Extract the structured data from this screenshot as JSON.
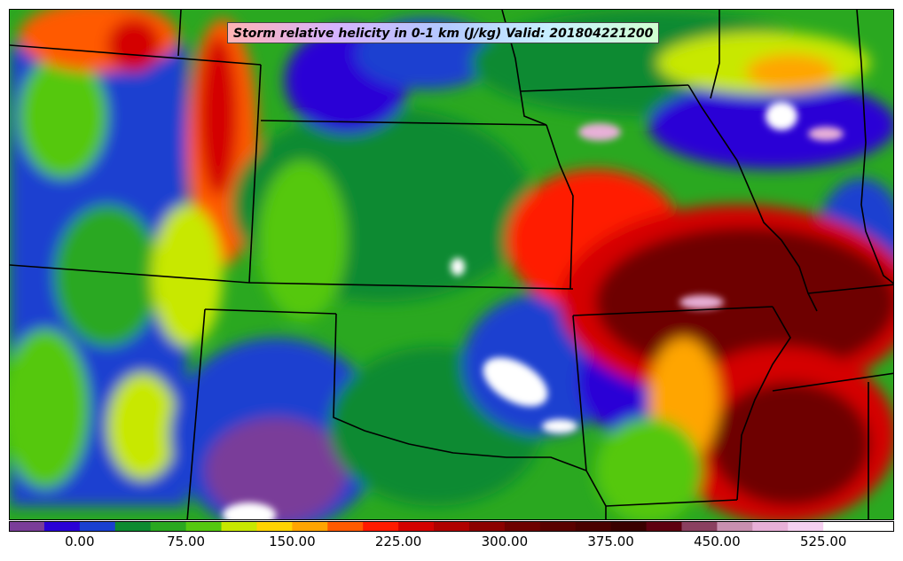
{
  "title": "Storm relative helicity in 0-1 km (J/kg) Valid: 201804221200",
  "colorbar": {
    "min": -50,
    "max": 575,
    "step": 25,
    "colors": [
      "#7a3d99",
      "#2a00d6",
      "#1a40d0",
      "#0d8a30",
      "#2aa820",
      "#55c810",
      "#c8e800",
      "#ffd400",
      "#ffa500",
      "#ff5a00",
      "#ff1a00",
      "#d40000",
      "#b00000",
      "#8c0000",
      "#6e0000",
      "#5a0000",
      "#4a0000",
      "#3a0000",
      "#5e0010",
      "#8a4060",
      "#c890b0",
      "#e8b0d8",
      "#f5d0f0",
      "#ffffff",
      "#ffffff"
    ],
    "tick_labels": [
      "0.00",
      "75.00",
      "150.00",
      "225.00",
      "300.00",
      "375.00",
      "450.00",
      "525.00"
    ],
    "tick_values": [
      0,
      75,
      150,
      225,
      300,
      375,
      450,
      525
    ]
  },
  "legend_icon": "colorbar-icon"
}
